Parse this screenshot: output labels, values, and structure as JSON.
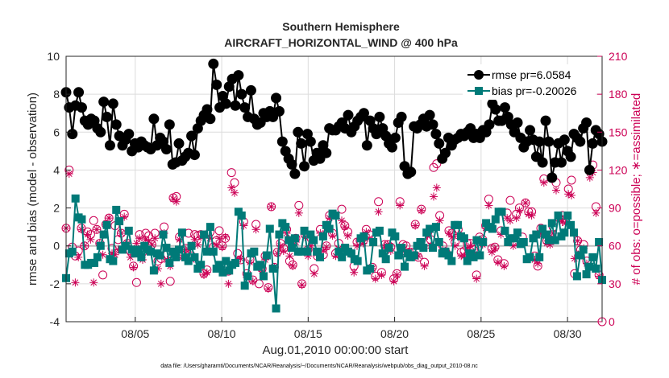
{
  "chart_data": {
    "type": "line",
    "title": [
      "Southern Hemisphere",
      "AIRCRAFT_HORIZONTAL_WIND @ 400 hPa"
    ],
    "xlabel": "Aug.01,2010 00:00:00 start",
    "ylabel_left": "rmse and bias (model - observation)",
    "ylabel_right": "# of obs: o=possible; ∗=assimilated",
    "footnote": "data file: /Users/gharamti/Documents/NCAR/Reanalysis/~/Documents/NCAR/Reanalysis/webpub/obs_diag_output_2010-08.nc",
    "x_ticks": [
      {
        "day": 5,
        "label": "08/05"
      },
      {
        "day": 10,
        "label": "08/10"
      },
      {
        "day": 15,
        "label": "08/15"
      },
      {
        "day": 20,
        "label": "08/20"
      },
      {
        "day": 25,
        "label": "08/25"
      },
      {
        "day": 30,
        "label": "08/30"
      }
    ],
    "xlim": [
      1,
      32
    ],
    "ylim_left": [
      -4,
      10
    ],
    "yticks_left": [
      "-4",
      "-2",
      "0",
      "2",
      "4",
      "6",
      "8",
      "10"
    ],
    "ylim_right": [
      0,
      210
    ],
    "yticks_right": [
      "0",
      "30",
      "60",
      "90",
      "120",
      "150",
      "180",
      "210"
    ],
    "grid": true,
    "legend_position": "top-right",
    "colors": {
      "rmse": "#000000",
      "bias": "#007a78",
      "obs": "#cc0055",
      "zero": "#bfbfbf"
    },
    "series": [
      {
        "name": "rmse pr=6.0584",
        "axis": "left",
        "values": [
          8.1,
          7.3,
          5.9,
          7.4,
          8.1,
          7.3,
          6.6,
          6.4,
          6.7,
          6.6,
          6.2,
          6.0,
          7.6,
          6.8,
          5.3,
          7.5,
          6.4,
          5.8,
          5.3,
          5.6,
          5.9,
          5.0,
          5.4,
          5.2,
          5.5,
          5.3,
          5.2,
          5.1,
          6.7,
          5.3,
          5.7,
          5.5,
          5.1,
          6.4,
          4.3,
          4.4,
          5.4,
          4.5,
          4.7,
          4.9,
          5.8,
          4.8,
          6.2,
          6.6,
          6.9,
          7.2,
          6.7,
          9.6,
          8.5,
          7.3,
          7.9,
          7.5,
          8.4,
          8.8,
          7.4,
          9.0,
          8.0,
          7.3,
          6.8,
          8.2,
          6.7,
          6.4,
          6.5,
          7.0,
          6.8,
          7.1,
          6.8,
          7.8,
          7.1,
          5.5,
          5.0,
          4.6,
          4.3,
          3.8,
          6.0,
          5.4,
          4.2,
          5.9,
          5.5,
          4.5,
          4.9,
          4.6,
          5.3,
          4.9,
          6.2,
          6.1,
          6.1,
          6.3,
          6.5,
          6.2,
          6.9,
          6.0,
          6.3,
          6.6,
          6.8,
          7.0,
          5.3,
          6.6,
          6.2,
          5.9,
          6.8,
          6.2,
          5.8,
          5.4,
          5.2,
          5.7,
          6.5,
          6.8,
          4.2,
          3.8,
          3.9,
          6.3,
          6.2,
          6.4,
          6.7,
          6.3,
          6.9,
          6.4,
          5.9,
          5.4,
          4.6,
          4.9,
          5.7,
          5.3,
          5.6,
          5.7,
          5.9,
          5.8,
          6.0,
          6.2,
          5.7,
          5.9,
          5.7,
          6.1,
          6.0,
          6.4,
          7.5,
          7.2,
          6.6,
          6.6,
          7.3,
          6.8,
          6.4,
          6.0,
          6.5,
          5.7,
          5.2,
          5.5,
          6.1,
          5.6,
          4.7,
          5.5,
          4.4,
          6.6,
          5.5,
          3.6,
          4.4,
          5.4,
          4.4,
          5.6,
          5.0,
          4.7,
          5.9,
          5.7,
          5.5,
          6.2,
          6.5,
          4.0,
          5.4,
          6.1,
          5.9,
          5.5
        ]
      },
      {
        "name": "bias pr=-0.20026",
        "axis": "left",
        "values": [
          -1.7,
          -0.4,
          -0.3,
          2.5,
          1.5,
          1.4,
          -1.0,
          -1.0,
          -0.9,
          -0.9,
          -0.6,
          0.0,
          0.6,
          1.1,
          -0.7,
          -0.8,
          1.9,
          1.3,
          -0.2,
          0.0,
          0.8,
          -0.2,
          -0.4,
          -0.2,
          -0.6,
          0.0,
          -0.2,
          -0.3,
          -1.3,
          -0.4,
          -0.5,
          0.6,
          -0.1,
          -0.9,
          -0.3,
          -0.6,
          -0.2,
          0.7,
          -0.6,
          -0.8,
          0.0,
          -0.6,
          -1.2,
          -1.0,
          0.6,
          -0.3,
          1.0,
          -0.3,
          -1.2,
          -1.0,
          -1.4,
          -0.8,
          -1.3,
          -1.0,
          -0.9,
          1.8,
          1.6,
          -2.1,
          -1.6,
          -0.4,
          -0.3,
          -1.1,
          -1.0,
          -1.6,
          -0.5,
          0.9,
          -1.2,
          -3.3,
          0.6,
          1.2,
          1.0,
          0.3,
          -0.1,
          0.4,
          -0.3,
          -0.3,
          0.8,
          -0.3,
          0.6,
          0.3,
          -0.3,
          -0.6,
          0.5,
          1.1,
          0.9,
          1.7,
          1.6,
          -0.3,
          -0.6,
          -0.1,
          -0.3,
          -0.4,
          -0.7,
          -0.8,
          0.4,
          0.5,
          -1.3,
          -1.2,
          0.2,
          0.7,
          0.8,
          -0.4,
          -0.7,
          -0.1,
          0.7,
          0.5,
          -0.5,
          -0.1,
          -1.1,
          -0.4,
          -0.6,
          -0.5,
          0.0,
          0.2,
          -0.1,
          0.7,
          0.9,
          -0.1,
          1.0,
          0.2,
          -0.4,
          -0.3,
          -0.5,
          -0.8,
          1.1,
          1.1,
          0.5,
          0.4,
          -0.8,
          -0.4,
          -0.6,
          0.3,
          -0.5,
          0.2,
          1.2,
          1.0,
          0.9,
          1.4,
          1.8,
          1.8,
          0.8,
          0.2,
          0.4,
          0.4,
          0.7,
          0.1,
          0.2,
          -0.7,
          -0.6,
          0.4,
          0.6,
          -0.6,
          0.9,
          0.6,
          0.3,
          1.2,
          0.3,
          1.6,
          0.5,
          0.7,
          1.6,
          1.1,
          0.7,
          -1.6,
          -0.5,
          -0.2,
          -1.5,
          -1.1,
          -0.6,
          -1.2,
          0.2,
          -1.8
        ]
      },
      {
        "name": "possible",
        "axis": "right",
        "values": [
          74,
          120,
          59,
          52,
          56,
          74,
          60,
          71,
          69,
          80,
          73,
          62,
          37,
          77,
          82,
          58,
          76,
          65,
          70,
          85,
          62,
          56,
          44,
          31,
          69,
          55,
          70,
          68,
          61,
          70,
          48,
          50,
          75,
          53,
          32,
          98,
          99,
          67,
          53,
          58,
          70,
          52,
          69,
          68,
          69,
          38,
          41,
          71,
          59,
          64,
          72,
          60,
          66,
          40,
          118,
          110,
          54,
          49,
          79,
          38,
          49,
          33,
          77,
          30,
          42,
          52,
          27,
          91,
          43,
          55,
          62,
          58,
          73,
          48,
          45,
          66,
          92,
          30,
          69,
          57,
          66,
          42,
          52,
          73,
          53,
          60,
          84,
          70,
          54,
          62,
          89,
          76,
          71,
          54,
          44,
          63,
          64,
          64,
          73,
          69,
          43,
          36,
          95,
          39,
          61,
          61,
          59,
          34,
          38,
          95,
          61,
          60,
          55,
          55,
          77,
          51,
          89,
          47,
          70,
          65,
          122,
          125,
          84,
          60,
          55,
          72,
          70,
          63,
          73,
          55,
          56,
          62,
          62,
          57,
          37,
          67,
          65,
          76,
          97,
          58,
          59,
          49,
          72,
          46,
          86,
          96,
          63,
          85,
          90,
          67,
          94,
          87,
          87,
          52,
          44,
          74,
          113,
          64,
          65,
          75,
          110,
          82,
          84,
          81,
          105,
          112,
          38,
          64,
          57,
          61,
          48,
          120,
          124,
          91,
          37,
          0
        ]
      },
      {
        "name": "assimilated",
        "axis": "right",
        "values": [
          74,
          117,
          56,
          31,
          51,
          73,
          60,
          69,
          65,
          31,
          73,
          62,
          53,
          77,
          82,
          54,
          53,
          57,
          70,
          83,
          62,
          51,
          43,
          62,
          66,
          49,
          65,
          64,
          61,
          66,
          42,
          30,
          70,
          49,
          44,
          97,
          95,
          65,
          51,
          57,
          57,
          49,
          65,
          61,
          67,
          37,
          39,
          66,
          55,
          61,
          66,
          59,
          67,
          30,
          106,
          102,
          49,
          50,
          76,
          35,
          47,
          32,
          73,
          44,
          40,
          49,
          26,
          91,
          43,
          54,
          60,
          56,
          70,
          52,
          44,
          63,
          86,
          29,
          67,
          52,
          60,
          38,
          54,
          70,
          56,
          59,
          82,
          68,
          52,
          58,
          80,
          75,
          68,
          54,
          39,
          60,
          65,
          62,
          71,
          66,
          42,
          34,
          87,
          37,
          59,
          61,
          56,
          32,
          37,
          92,
          59,
          55,
          53,
          51,
          76,
          52,
          88,
          44,
          68,
          60,
          99,
          106,
          80,
          57,
          53,
          70,
          67,
          60,
          69,
          52,
          52,
          58,
          60,
          55,
          34,
          65,
          61,
          74,
          92,
          55,
          58,
          47,
          69,
          44,
          82,
          80,
          60,
          82,
          88,
          63,
          94,
          85,
          84,
          49,
          46,
          70,
          110,
          62,
          61,
          70,
          104,
          80,
          79,
          78,
          101,
          100,
          50,
          64,
          54,
          58,
          46,
          114,
          118,
          86,
          36,
          34
        ]
      }
    ]
  }
}
